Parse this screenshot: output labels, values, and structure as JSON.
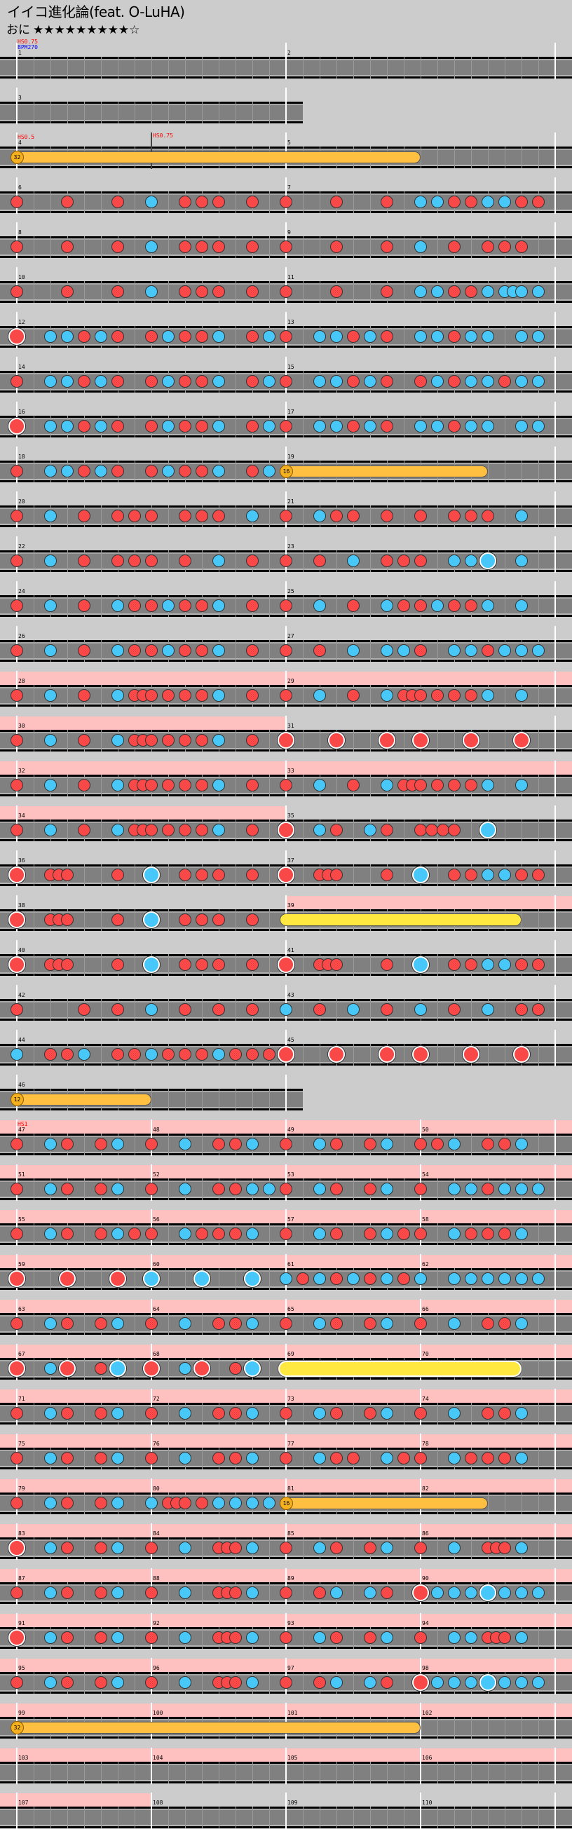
{
  "title": "イイコ進化論(feat. O-LuHA)",
  "difficulty": {
    "name": "おに",
    "stars": "★★★★★★★★★☆",
    "level": 9
  },
  "colors": {
    "background": "#cccccc",
    "lane": "#808080",
    "gogo": "#ffc0c0",
    "don": "#f84848",
    "ka": "#48c8f8",
    "roll": "#ffe840",
    "balloon": "#ffbf40",
    "hs_label": "#ff0000",
    "bpm_label": "#0000ff"
  },
  "rows": [
    {
      "measures": [
        {
          "n": 1,
          "notes": "0",
          "labels": [
            {
              "text": "HS0.75",
              "color": "#ff0000"
            },
            {
              "text": "BPM270",
              "color": "#0000ff"
            }
          ]
        },
        {
          "n": 2,
          "notes": "0"
        }
      ]
    },
    {
      "measures": [
        {
          "n": 3,
          "notes": "0"
        }
      ]
    },
    {
      "measures": [
        {
          "n": 4,
          "notes": "7",
          "balloon": 32,
          "labels": [
            {
              "text": "HS0.5",
              "color": "#ff0000"
            },
            {
              "text": "HS0.75",
              "color": "#ff0000",
              "pos": 0.5
            }
          ]
        },
        {
          "n": 5,
          "notes": "0000000080000000"
        }
      ]
    },
    {
      "measures": [
        {
          "n": 6,
          "notes": "1001001020111010"
        },
        {
          "n": 7,
          "notes": "1001001022112211"
        }
      ]
    },
    {
      "measures": [
        {
          "n": 8,
          "notes": "1001001020111010"
        },
        {
          "n": 9,
          "notes": "1001001020101110"
        }
      ]
    },
    {
      "measures": [
        {
          "n": 10,
          "notes": "1001001020111010"
        },
        {
          "n": 11,
          "notes": "10000010000010002020101020222020"
        }
      ]
    },
    {
      "measures": [
        {
          "n": 12,
          "notes": "3022121012112012"
        },
        {
          "n": 13,
          "notes": "1022121022122022"
        }
      ]
    },
    {
      "measures": [
        {
          "n": 14,
          "notes": "1022121012112012"
        },
        {
          "n": 15,
          "notes": "1022121012122122"
        }
      ]
    },
    {
      "measures": [
        {
          "n": 16,
          "notes": "3022121012112012"
        },
        {
          "n": 17,
          "notes": "1022121022122022"
        }
      ]
    },
    {
      "measures": [
        {
          "n": 18,
          "notes": "1022121012112012"
        },
        {
          "n": 19,
          "notes": "7000000000008000",
          "balloon": 16
        }
      ]
    },
    {
      "measures": [
        {
          "n": 20,
          "notes": "1020101110111020"
        },
        {
          "n": 21,
          "notes": "1021101010111020"
        }
      ]
    },
    {
      "measures": [
        {
          "n": 22,
          "notes": "1020101110102010"
        },
        {
          "n": 23,
          "notes": "1010201110224020"
        }
      ]
    },
    {
      "measures": [
        {
          "n": 24,
          "notes": "1020102112112010"
        },
        {
          "n": 25,
          "notes": "1020102112112020"
        }
      ]
    },
    {
      "measures": [
        {
          "n": 26,
          "notes": "1020102112112010"
        },
        {
          "n": 27,
          "notes": "1010202210221222"
        }
      ]
    },
    {
      "measures": [
        {
          "n": 28,
          "notes": "10002000100020111010101020001000",
          "gogo": true
        },
        {
          "n": 29,
          "notes": "10002000100020111010101020002000",
          "gogo": true
        }
      ]
    },
    {
      "measures": [
        {
          "n": 30,
          "notes": "10002000100020111010101020001000",
          "gogo": true
        },
        {
          "n": 31,
          "notes": "3003003030030030"
        }
      ]
    },
    {
      "measures": [
        {
          "n": 32,
          "notes": "10002000100020111010101020001000",
          "gogo": true
        },
        {
          "n": 33,
          "notes": "10002000100020111010101020002000",
          "gogo": true
        }
      ]
    },
    {
      "measures": [
        {
          "n": 34,
          "notes": "10002000100020111010101020001000",
          "gogo": true
        },
        {
          "n": 35,
          "notes": "300000200100000200100000101010100000400000000000"
        }
      ]
    },
    {
      "measures": [
        {
          "n": 36,
          "notes": "30001110000010004000101010001000"
        },
        {
          "n": 37,
          "notes": "30001110000010004000101020201010"
        }
      ]
    },
    {
      "measures": [
        {
          "n": 38,
          "notes": "30001110000010004000101010001000"
        },
        {
          "n": 39,
          "notes": "5000000000000080",
          "gogo": true
        }
      ]
    },
    {
      "measures": [
        {
          "n": 40,
          "notes": "30001110000010004000101010001000"
        },
        {
          "n": 41,
          "notes": "30001110000010004000101020201010"
        }
      ]
    },
    {
      "measures": [
        {
          "n": 42,
          "notes": "1000101020101010"
        },
        {
          "n": 43,
          "notes": "2010201020102011"
        }
      ]
    },
    {
      "measures": [
        {
          "n": 44,
          "notes": "2011201121112111"
        },
        {
          "n": 45,
          "notes": "3003003030030030"
        }
      ]
    },
    {
      "measures": [
        {
          "n": 46,
          "notes": "7000000080000000",
          "balloon": 12
        }
      ]
    },
    {
      "measures": [
        {
          "n": 47,
          "notes": "10210120",
          "gogo": true,
          "labels": [
            {
              "text": "HS1",
              "color": "#ff0000"
            }
          ]
        },
        {
          "n": 48,
          "notes": "10201120",
          "gogo": true
        },
        {
          "n": 49,
          "notes": "10210120",
          "gogo": true
        },
        {
          "n": 50,
          "notes": "11201120",
          "gogo": true
        }
      ]
    },
    {
      "measures": [
        {
          "n": 51,
          "notes": "10210120",
          "gogo": true
        },
        {
          "n": 52,
          "notes": "10201122",
          "gogo": true
        },
        {
          "n": 53,
          "notes": "10210120",
          "gogo": true
        },
        {
          "n": 54,
          "notes": "10221222",
          "gogo": true
        }
      ]
    },
    {
      "measures": [
        {
          "n": 55,
          "notes": "10210121",
          "gogo": true
        },
        {
          "n": 56,
          "notes": "10211120",
          "gogo": true
        },
        {
          "n": 57,
          "notes": "10210121",
          "gogo": true
        },
        {
          "n": 58,
          "notes": "10211120",
          "gogo": true
        }
      ]
    },
    {
      "measures": [
        {
          "n": 59,
          "notes": "30030030",
          "gogo": true
        },
        {
          "n": 60,
          "notes": "40040040",
          "gogo": true
        },
        {
          "n": 61,
          "notes": "21212121",
          "gogo": true
        },
        {
          "n": 62,
          "notes": "20222222",
          "gogo": true
        }
      ]
    },
    {
      "measures": [
        {
          "n": 63,
          "notes": "10210120",
          "gogo": true
        },
        {
          "n": 64,
          "notes": "10201120",
          "gogo": true
        },
        {
          "n": 65,
          "notes": "10210120",
          "gogo": true
        },
        {
          "n": 66,
          "notes": "10201120",
          "gogo": true
        }
      ]
    },
    {
      "measures": [
        {
          "n": 67,
          "notes": "30230140",
          "gogo": true
        },
        {
          "n": 68,
          "notes": "30230140",
          "gogo": true
        },
        {
          "n": 69,
          "notes": "60000000",
          "gogo": true
        },
        {
          "n": 70,
          "notes": "00000080",
          "gogo": true
        }
      ]
    },
    {
      "measures": [
        {
          "n": 71,
          "notes": "10210120",
          "gogo": true
        },
        {
          "n": 72,
          "notes": "10201120",
          "gogo": true
        },
        {
          "n": 73,
          "notes": "10210120",
          "gogo": true
        },
        {
          "n": 74,
          "notes": "10201120",
          "gogo": true
        }
      ]
    },
    {
      "measures": [
        {
          "n": 75,
          "notes": "10210120",
          "gogo": true
        },
        {
          "n": 76,
          "notes": "10201120",
          "gogo": true
        },
        {
          "n": 77,
          "notes": "10211021",
          "gogo": true
        },
        {
          "n": 78,
          "notes": "10211120",
          "gogo": true
        }
      ]
    },
    {
      "measures": [
        {
          "n": 79,
          "notes": "10210120",
          "gogo": true
        },
        {
          "n": 80,
          "notes": "2011101020202020",
          "gogo": true
        },
        {
          "n": 81,
          "notes": "70000000",
          "gogo": true,
          "balloon": 16
        },
        {
          "n": 82,
          "notes": "00008000",
          "gogo": true
        }
      ]
    },
    {
      "measures": [
        {
          "n": 83,
          "notes": "30210120",
          "gogo": true
        },
        {
          "n": 84,
          "notes": "1000200011102000",
          "gogo": true
        },
        {
          "n": 85,
          "notes": "10210120",
          "gogo": true
        },
        {
          "n": 86,
          "notes": "1000200011102000",
          "gogo": true
        }
      ]
    },
    {
      "measures": [
        {
          "n": 87,
          "notes": "10210120",
          "gogo": true
        },
        {
          "n": 88,
          "notes": "1000200011102000",
          "gogo": true
        },
        {
          "n": 89,
          "notes": "10120210",
          "gogo": true
        },
        {
          "n": 90,
          "notes": "32224222",
          "gogo": true
        }
      ]
    },
    {
      "measures": [
        {
          "n": 91,
          "notes": "30210120",
          "gogo": true
        },
        {
          "n": 92,
          "notes": "1000200011102000",
          "gogo": true
        },
        {
          "n": 93,
          "notes": "10210120",
          "gogo": true
        },
        {
          "n": 94,
          "notes": "1000202011102000",
          "gogo": true
        }
      ]
    },
    {
      "measures": [
        {
          "n": 95,
          "notes": "10210120",
          "gogo": true
        },
        {
          "n": 96,
          "notes": "1000200011102000",
          "gogo": true
        },
        {
          "n": 97,
          "notes": "10120210",
          "gogo": true
        },
        {
          "n": 98,
          "notes": "32224222",
          "gogo": true
        }
      ]
    },
    {
      "measures": [
        {
          "n": 99,
          "notes": "7",
          "gogo": true,
          "balloon": 32
        },
        {
          "n": 100,
          "notes": "0",
          "gogo": true
        },
        {
          "n": 101,
          "notes": "0",
          "gogo": true
        },
        {
          "n": 102,
          "notes": "8",
          "gogo": true
        }
      ]
    },
    {
      "measures": [
        {
          "n": 103,
          "notes": "0",
          "gogo": true
        },
        {
          "n": 104,
          "notes": "0",
          "gogo": true
        },
        {
          "n": 105,
          "notes": "0",
          "gogo": true
        },
        {
          "n": 106,
          "notes": "0",
          "gogo": true
        }
      ]
    },
    {
      "measures": [
        {
          "n": 107,
          "notes": "0",
          "gogo": true
        },
        {
          "n": 108,
          "notes": "0"
        },
        {
          "n": 109,
          "notes": "0"
        },
        {
          "n": 110,
          "notes": "0"
        }
      ]
    }
  ]
}
